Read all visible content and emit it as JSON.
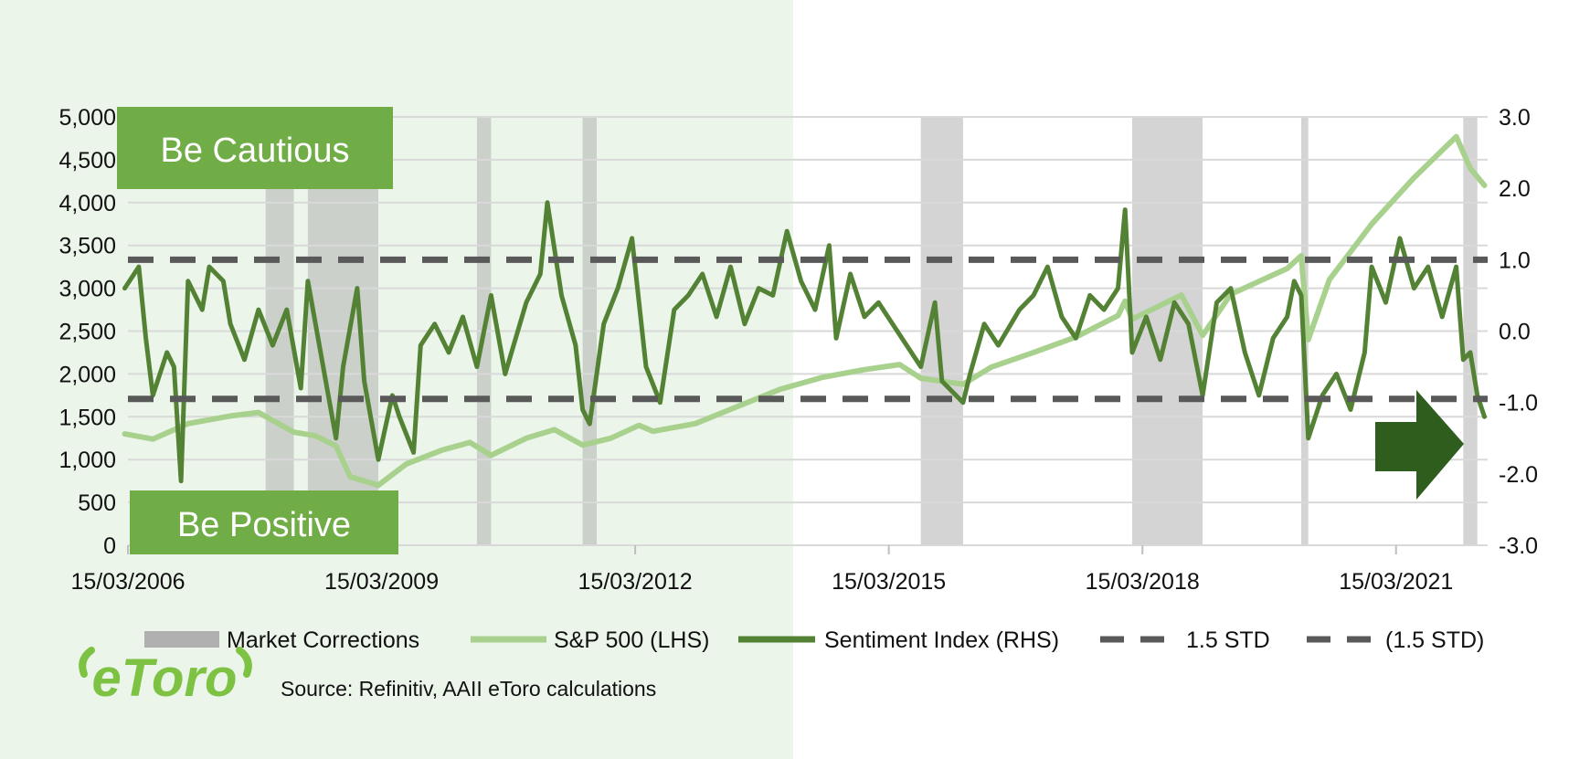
{
  "chart_data": {
    "type": "line",
    "x_tick_labels": [
      "15/03/2006",
      "15/03/2009",
      "15/03/2012",
      "15/03/2015",
      "15/03/2018",
      "15/03/2021"
    ],
    "x_range": [
      "2006-03-15",
      "2022-04-15"
    ],
    "y_left": {
      "ylim": [
        0,
        5000
      ],
      "ticks": [
        "0",
        "500",
        "1,000",
        "1,500",
        "2,000",
        "2,500",
        "3,000",
        "3,500",
        "4,000",
        "4,500",
        "5,000"
      ]
    },
    "y_right": {
      "ylim": [
        -3.0,
        3.0
      ],
      "ticks": [
        "-3.0",
        "-2.0",
        "-1.0",
        "0.0",
        "1.0",
        "2.0",
        "3.0"
      ]
    },
    "grid": "horizontal",
    "legend_position": "bottom",
    "series": [
      {
        "name": "S&P 500 (LHS)",
        "axis": "left",
        "color": "#a9d18e",
        "points": [
          [
            "2006-03",
            1300
          ],
          [
            "2006-07",
            1240
          ],
          [
            "2006-12",
            1420
          ],
          [
            "2007-06",
            1510
          ],
          [
            "2007-10",
            1550
          ],
          [
            "2008-03",
            1320
          ],
          [
            "2008-06",
            1280
          ],
          [
            "2008-09",
            1160
          ],
          [
            "2008-11",
            800
          ],
          [
            "2009-03",
            700
          ],
          [
            "2009-07",
            950
          ],
          [
            "2009-12",
            1110
          ],
          [
            "2010-04",
            1200
          ],
          [
            "2010-07",
            1050
          ],
          [
            "2010-12",
            1250
          ],
          [
            "2011-04",
            1350
          ],
          [
            "2011-08",
            1170
          ],
          [
            "2011-12",
            1250
          ],
          [
            "2012-04",
            1400
          ],
          [
            "2012-06",
            1330
          ],
          [
            "2012-12",
            1420
          ],
          [
            "2013-06",
            1620
          ],
          [
            "2013-12",
            1820
          ],
          [
            "2014-06",
            1960
          ],
          [
            "2014-12",
            2050
          ],
          [
            "2015-05",
            2110
          ],
          [
            "2015-08",
            1950
          ],
          [
            "2016-02",
            1880
          ],
          [
            "2016-06",
            2080
          ],
          [
            "2016-12",
            2250
          ],
          [
            "2017-06",
            2430
          ],
          [
            "2017-12",
            2680
          ],
          [
            "2018-01",
            2850
          ],
          [
            "2018-02",
            2640
          ],
          [
            "2018-09",
            2920
          ],
          [
            "2018-12",
            2450
          ],
          [
            "2019-04",
            2930
          ],
          [
            "2019-12",
            3230
          ],
          [
            "2020-02",
            3380
          ],
          [
            "2020-03",
            2400
          ],
          [
            "2020-06",
            3100
          ],
          [
            "2020-12",
            3750
          ],
          [
            "2021-06",
            4290
          ],
          [
            "2021-12",
            4770
          ],
          [
            "2022-02",
            4400
          ],
          [
            "2022-04",
            4200
          ]
        ]
      },
      {
        "name": "Sentiment Index (RHS)",
        "axis": "right",
        "color": "#548235",
        "points": [
          [
            "2006-03",
            0.6
          ],
          [
            "2006-05",
            0.9
          ],
          [
            "2006-06",
            -0.1
          ],
          [
            "2006-07",
            -0.9
          ],
          [
            "2006-09",
            -0.3
          ],
          [
            "2006-10",
            -0.5
          ],
          [
            "2006-11",
            -2.1
          ],
          [
            "2006-12",
            0.7
          ],
          [
            "2007-02",
            0.3
          ],
          [
            "2007-03",
            0.9
          ],
          [
            "2007-05",
            0.7
          ],
          [
            "2007-06",
            0.1
          ],
          [
            "2007-08",
            -0.4
          ],
          [
            "2007-10",
            0.3
          ],
          [
            "2007-12",
            -0.2
          ],
          [
            "2008-02",
            0.3
          ],
          [
            "2008-04",
            -0.8
          ],
          [
            "2008-05",
            0.7
          ],
          [
            "2008-07",
            -0.4
          ],
          [
            "2008-09",
            -1.5
          ],
          [
            "2008-10",
            -0.5
          ],
          [
            "2008-12",
            0.6
          ],
          [
            "2009-01",
            -0.7
          ],
          [
            "2009-03",
            -1.8
          ],
          [
            "2009-05",
            -0.9
          ],
          [
            "2009-06",
            -1.2
          ],
          [
            "2009-08",
            -1.7
          ],
          [
            "2009-09",
            -0.2
          ],
          [
            "2009-11",
            0.1
          ],
          [
            "2010-01",
            -0.3
          ],
          [
            "2010-03",
            0.2
          ],
          [
            "2010-05",
            -0.5
          ],
          [
            "2010-07",
            0.5
          ],
          [
            "2010-09",
            -0.6
          ],
          [
            "2010-12",
            0.4
          ],
          [
            "2011-02",
            0.8
          ],
          [
            "2011-03",
            1.8
          ],
          [
            "2011-05",
            0.5
          ],
          [
            "2011-07",
            -0.2
          ],
          [
            "2011-08",
            -1.1
          ],
          [
            "2011-09",
            -1.3
          ],
          [
            "2011-11",
            0.1
          ],
          [
            "2012-01",
            0.6
          ],
          [
            "2012-03",
            1.3
          ],
          [
            "2012-05",
            -0.5
          ],
          [
            "2012-07",
            -1.0
          ],
          [
            "2012-09",
            0.3
          ],
          [
            "2012-11",
            0.5
          ],
          [
            "2013-01",
            0.8
          ],
          [
            "2013-03",
            0.2
          ],
          [
            "2013-05",
            0.9
          ],
          [
            "2013-07",
            0.1
          ],
          [
            "2013-09",
            0.6
          ],
          [
            "2013-11",
            0.5
          ],
          [
            "2014-01",
            1.4
          ],
          [
            "2014-03",
            0.7
          ],
          [
            "2014-05",
            0.3
          ],
          [
            "2014-07",
            1.2
          ],
          [
            "2014-08",
            -0.1
          ],
          [
            "2014-10",
            0.8
          ],
          [
            "2014-12",
            0.2
          ],
          [
            "2015-02",
            0.4
          ],
          [
            "2015-04",
            0.1
          ],
          [
            "2015-06",
            -0.2
          ],
          [
            "2015-08",
            -0.5
          ],
          [
            "2015-10",
            0.4
          ],
          [
            "2015-11",
            -0.7
          ],
          [
            "2016-02",
            -1.0
          ],
          [
            "2016-03",
            -0.6
          ],
          [
            "2016-05",
            0.1
          ],
          [
            "2016-07",
            -0.2
          ],
          [
            "2016-10",
            0.3
          ],
          [
            "2016-12",
            0.5
          ],
          [
            "2017-02",
            0.9
          ],
          [
            "2017-04",
            0.2
          ],
          [
            "2017-06",
            -0.1
          ],
          [
            "2017-08",
            0.5
          ],
          [
            "2017-10",
            0.3
          ],
          [
            "2017-12",
            0.6
          ],
          [
            "2018-01",
            1.7
          ],
          [
            "2018-02",
            -0.3
          ],
          [
            "2018-04",
            0.2
          ],
          [
            "2018-06",
            -0.4
          ],
          [
            "2018-08",
            0.4
          ],
          [
            "2018-10",
            0.1
          ],
          [
            "2018-12",
            -0.9
          ],
          [
            "2019-02",
            0.4
          ],
          [
            "2019-04",
            0.6
          ],
          [
            "2019-06",
            -0.3
          ],
          [
            "2019-08",
            -0.9
          ],
          [
            "2019-10",
            -0.1
          ],
          [
            "2019-12",
            0.2
          ],
          [
            "2020-01",
            0.7
          ],
          [
            "2020-02",
            0.5
          ],
          [
            "2020-03",
            -1.5
          ],
          [
            "2020-05",
            -0.9
          ],
          [
            "2020-07",
            -0.6
          ],
          [
            "2020-09",
            -1.1
          ],
          [
            "2020-11",
            -0.3
          ],
          [
            "2020-12",
            0.9
          ],
          [
            "2021-02",
            0.4
          ],
          [
            "2021-04",
            1.3
          ],
          [
            "2021-06",
            0.6
          ],
          [
            "2021-08",
            0.9
          ],
          [
            "2021-10",
            0.2
          ],
          [
            "2021-12",
            0.9
          ],
          [
            "2022-01",
            -0.4
          ],
          [
            "2022-02",
            -0.3
          ],
          [
            "2022-03",
            -0.9
          ],
          [
            "2022-04",
            -1.2
          ]
        ]
      },
      {
        "name": "1.5 STD",
        "axis": "right",
        "color": "#595959",
        "dashed": true,
        "value": 1.0
      },
      {
        "name": "(1.5 STD)",
        "axis": "right",
        "color": "#595959",
        "dashed": true,
        "value": -0.95
      }
    ],
    "market_corrections": {
      "name": "Market Corrections",
      "color": "#b0b0b0",
      "periods": [
        [
          "2007-11",
          "2008-03"
        ],
        [
          "2008-05",
          "2009-03"
        ],
        [
          "2010-05",
          "2010-07"
        ],
        [
          "2011-08",
          "2011-10"
        ],
        [
          "2015-08",
          "2016-02"
        ],
        [
          "2018-02",
          "2018-12"
        ],
        [
          "2020-02",
          "2020-03"
        ],
        [
          "2022-01",
          "2022-03"
        ]
      ]
    },
    "annotations": {
      "be_cautious": "Be Cautious",
      "be_positive": "Be Positive"
    },
    "source": "Source: Refinitiv, AAII eToro calculations"
  },
  "logo": {
    "text": "eToro"
  },
  "colors": {
    "shade_left": "#ebf5ea",
    "box_green": "#70ad47",
    "arrow_green": "#2f5d1e",
    "grid": "#d9d9d9"
  }
}
